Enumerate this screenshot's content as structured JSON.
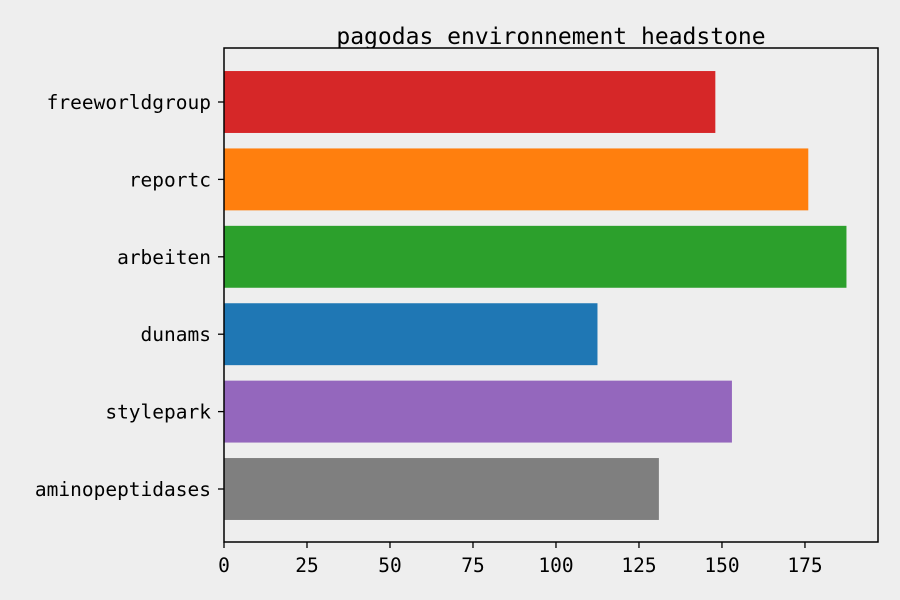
{
  "chart_data": {
    "type": "bar",
    "orientation": "horizontal",
    "title": "pagodas environnement headstone",
    "xlabel": "",
    "ylabel": "",
    "categories": [
      "freeworldgroup",
      "reportc",
      "arbeiten",
      "dunams",
      "stylepark",
      "aminopeptidases"
    ],
    "values": [
      148,
      176,
      187.5,
      112.5,
      153,
      131
    ],
    "colors": [
      "#d62728",
      "#ff7f0e",
      "#2ca02c",
      "#1f77b4",
      "#9467bd",
      "#7f7f7f"
    ],
    "xlim": [
      0,
      197
    ],
    "xticks": [
      0,
      25,
      50,
      75,
      100,
      125,
      150,
      175
    ],
    "grid": false
  }
}
